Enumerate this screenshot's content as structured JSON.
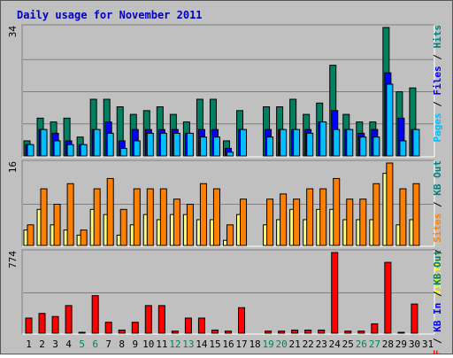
{
  "chart_data": {
    "type": "bar",
    "title": "Daily usage for November 2011",
    "days": [
      "1",
      "2",
      "3",
      "4",
      "5",
      "6",
      "7",
      "8",
      "9",
      "10",
      "11",
      "12",
      "13",
      "14",
      "15",
      "16",
      "17",
      "18",
      "19",
      "20",
      "21",
      "22",
      "23",
      "24",
      "25",
      "26",
      "27",
      "28",
      "29",
      "30",
      "31"
    ],
    "weekend_days": [
      "5",
      "6",
      "12",
      "13",
      "19",
      "20",
      "26",
      "27"
    ],
    "panels": [
      {
        "id": "top",
        "max_label": "34",
        "ylim": [
          0,
          34
        ],
        "right_legend": [
          {
            "text": "Pages",
            "color": "#00bfff"
          },
          {
            "text": " / ",
            "color": "#000000"
          },
          {
            "text": "Files",
            "color": "#0000ff"
          },
          {
            "text": " / ",
            "color": "#000000"
          },
          {
            "text": "Hits",
            "color": "#008080"
          }
        ],
        "series": [
          {
            "name": "Hits",
            "color": "#008060",
            "values": [
              4,
              10,
              9,
              10,
              5,
              15,
              15,
              13,
              11,
              12,
              13,
              11,
              9,
              15,
              15,
              4,
              12,
              0,
              13,
              13,
              15,
              11,
              14,
              24,
              11,
              9,
              9,
              34,
              17,
              18,
              0
            ]
          },
          {
            "name": "Files",
            "color": "#0000ff",
            "values": [
              3,
              7,
              6,
              4,
              3,
              7,
              9,
              4,
              7,
              7,
              7,
              7,
              6,
              7,
              7,
              2,
              7,
              0,
              7,
              7,
              7,
              7,
              9,
              12,
              7,
              6,
              7,
              22,
              10,
              7,
              0
            ]
          },
          {
            "name": "Pages",
            "color": "#00bfff",
            "values": [
              3,
              7,
              4,
              3,
              3,
              7,
              6,
              2,
              4,
              6,
              6,
              6,
              6,
              5,
              5,
              1,
              7,
              0,
              5,
              7,
              7,
              6,
              9,
              7,
              7,
              5,
              5,
              19,
              4,
              7,
              0
            ]
          }
        ]
      },
      {
        "id": "mid",
        "max_label": "16",
        "ylim": [
          0,
          16
        ],
        "right_legend": [
          {
            "text": "Visits",
            "color": "#ffff00"
          },
          {
            "text": " / ",
            "color": "#000000"
          },
          {
            "text": "Sites",
            "color": "#ff8000"
          },
          {
            "text": " / ",
            "color": "#000000"
          },
          {
            "text": "KB Out",
            "color": "#008080"
          }
        ],
        "series": [
          {
            "name": "Visits",
            "color": "#ffff80",
            "values": [
              3,
              7,
              4,
              3,
              2,
              7,
              6,
              2,
              4,
              6,
              5,
              6,
              6,
              5,
              5,
              1,
              6,
              0,
              4,
              5,
              7,
              5,
              7,
              7,
              5,
              5,
              5,
              14,
              4,
              5,
              0
            ]
          },
          {
            "name": "Sites",
            "color": "#ff8000",
            "values": [
              4,
              11,
              8,
              12,
              3,
              11,
              13,
              7,
              11,
              11,
              11,
              9,
              8,
              12,
              11,
              4,
              9,
              0,
              9,
              10,
              9,
              11,
              11,
              13,
              9,
              9,
              12,
              16,
              11,
              12,
              0
            ]
          }
        ]
      },
      {
        "id": "bot",
        "max_label": "774",
        "ylim": [
          0,
          774
        ],
        "right_legend": [
          {
            "text": "KB F",
            "color": "#ff0000"
          },
          {
            "text": " / ",
            "color": "#000000"
          },
          {
            "text": "KB In",
            "color": "#0000ff"
          },
          {
            "text": " / ",
            "color": "#000000"
          },
          {
            "text": "KB Out",
            "color": "#008060"
          }
        ],
        "series": [
          {
            "name": "KB F",
            "color": "#ff0000",
            "values": [
              145,
              190,
              160,
              265,
              5,
              360,
              105,
              30,
              105,
              265,
              265,
              20,
              145,
              145,
              30,
              20,
              245,
              0,
              20,
              20,
              30,
              30,
              30,
              774,
              20,
              20,
              90,
              680,
              5,
              280,
              0
            ]
          }
        ]
      }
    ]
  }
}
